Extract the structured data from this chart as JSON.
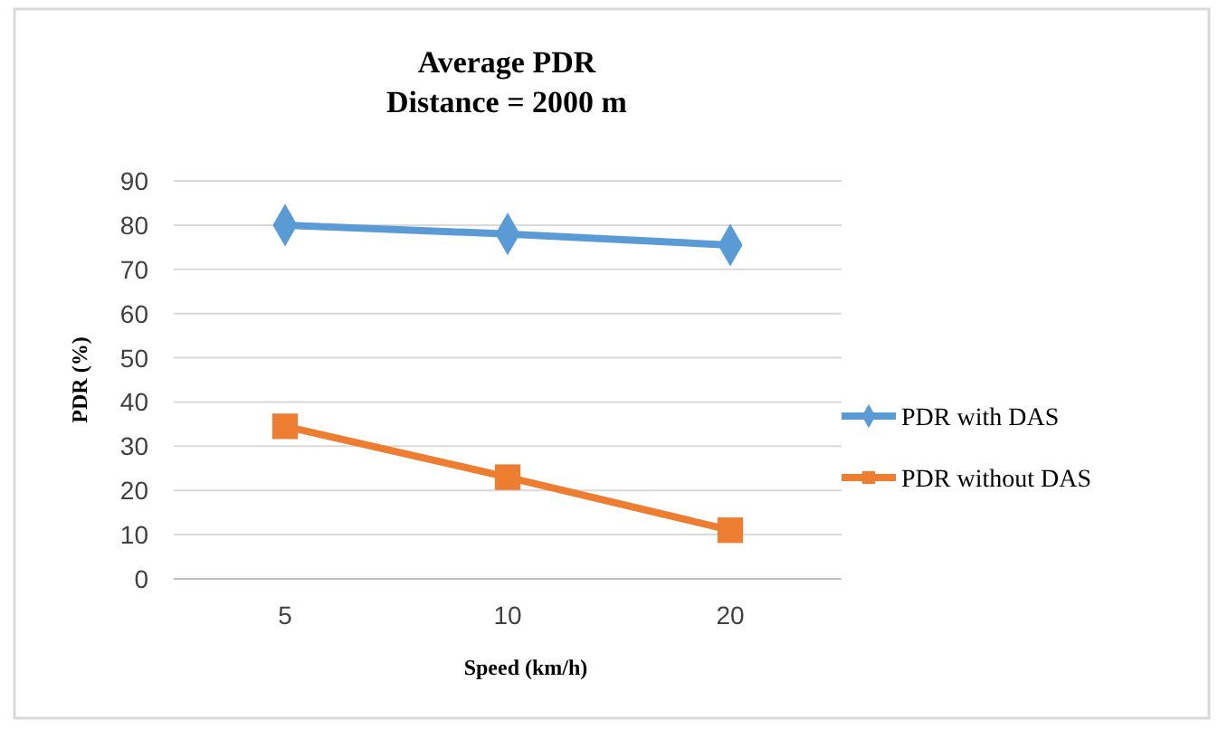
{
  "chart_data": {
    "type": "line",
    "title": "Average PDR",
    "subtitle": "Distance = 2000 m",
    "xlabel": "Speed (km/h)",
    "ylabel": "PDR (%)",
    "categories": [
      "5",
      "10",
      "20"
    ],
    "ylim": [
      0,
      90
    ],
    "yticks": [
      0,
      10,
      20,
      30,
      40,
      50,
      60,
      70,
      80,
      90
    ],
    "grid": "y",
    "legend": "right",
    "line_style": "solid",
    "series": [
      {
        "name": "PDR with DAS",
        "color": "#5b9bd5",
        "marker": "diamond",
        "values": [
          80,
          78,
          75.5
        ]
      },
      {
        "name": "PDR without DAS",
        "color": "#ed7d31",
        "marker": "square",
        "values": [
          34.5,
          23,
          11
        ]
      }
    ]
  }
}
